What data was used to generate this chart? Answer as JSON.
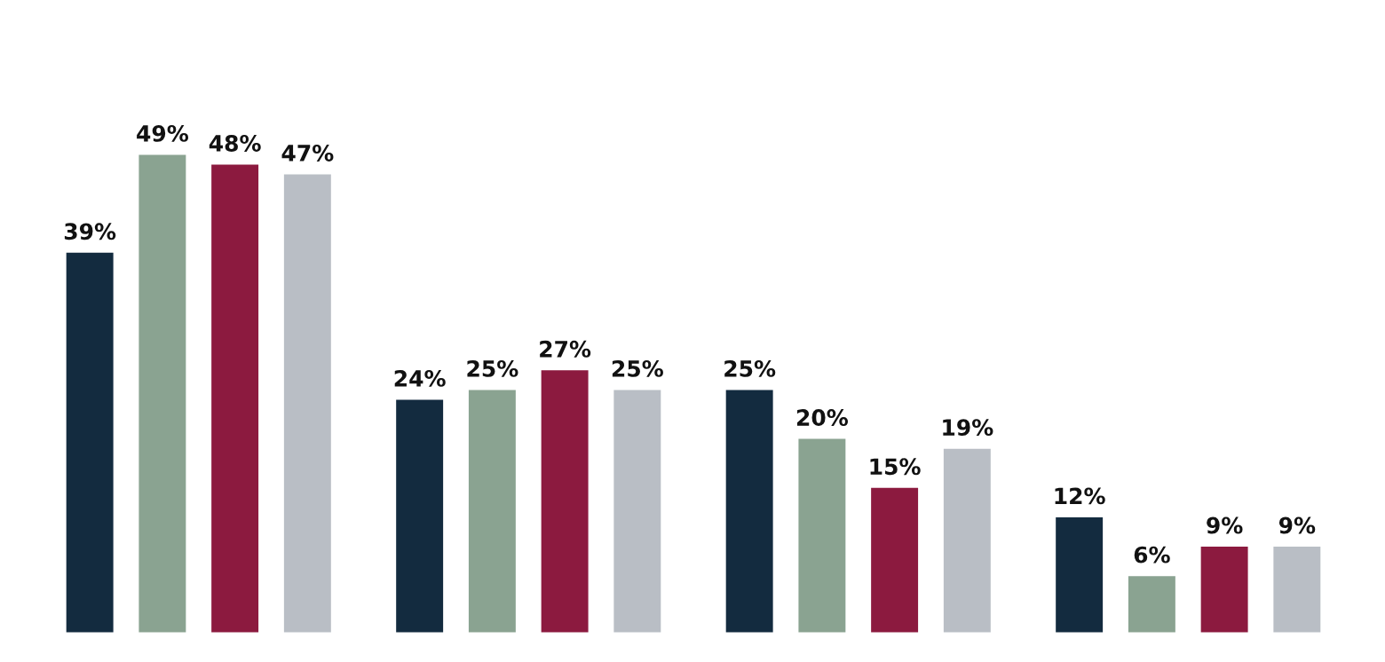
{
  "chart_data": {
    "type": "bar",
    "categories": [
      null,
      null,
      null,
      null
    ],
    "tick_labels": false,
    "grid": false,
    "legend": false,
    "series": [
      {
        "color": "#132b3f",
        "values": [
          39,
          24,
          25,
          12
        ],
        "value_labels": [
          "39%",
          "24%",
          "25%",
          "12%"
        ]
      },
      {
        "color": "#8aa391",
        "values": [
          49,
          25,
          20,
          6
        ],
        "value_labels": [
          "49%",
          "25%",
          "20%",
          "6%"
        ]
      },
      {
        "color": "#8c1a3f",
        "values": [
          48,
          27,
          15,
          9
        ],
        "value_labels": [
          "48%",
          "27%",
          "15%",
          "9%"
        ]
      },
      {
        "color": "#b9bec5",
        "values": [
          47,
          25,
          19,
          9
        ],
        "value_labels": [
          "47%",
          "25%",
          "19%",
          "9%"
        ]
      }
    ]
  }
}
